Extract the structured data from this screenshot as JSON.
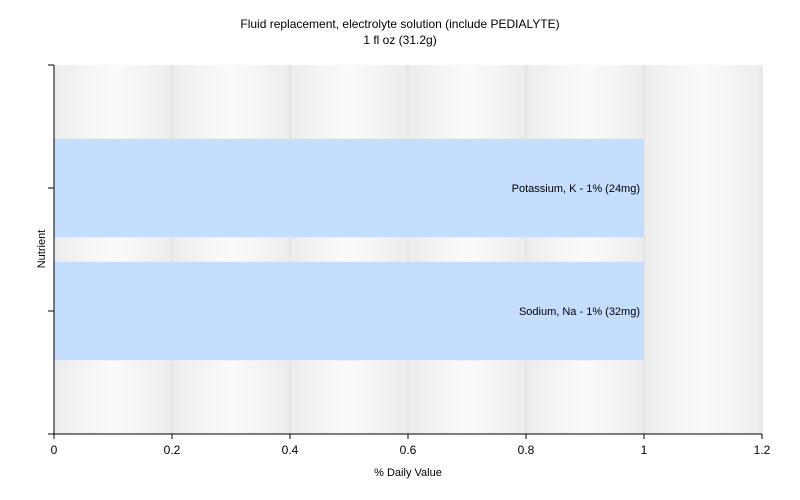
{
  "chart_data": {
    "type": "bar",
    "orientation": "horizontal",
    "title": "Fluid replacement, electrolyte solution (include PEDIALYTE)",
    "subtitle": "1 fl oz (31.2g)",
    "xlabel": "% Daily Value",
    "ylabel": "Nutrient",
    "xlim": [
      0,
      1.2
    ],
    "xticks": [
      "0",
      "0.2",
      "0.4",
      "0.6",
      "0.8",
      "1",
      "1.2"
    ],
    "grid": true,
    "bar_color": "#c5deff",
    "categories": [
      "Potassium, K - 1% (24mg)",
      "Sodium, Na - 1% (32mg)"
    ],
    "values": [
      1,
      1
    ]
  }
}
